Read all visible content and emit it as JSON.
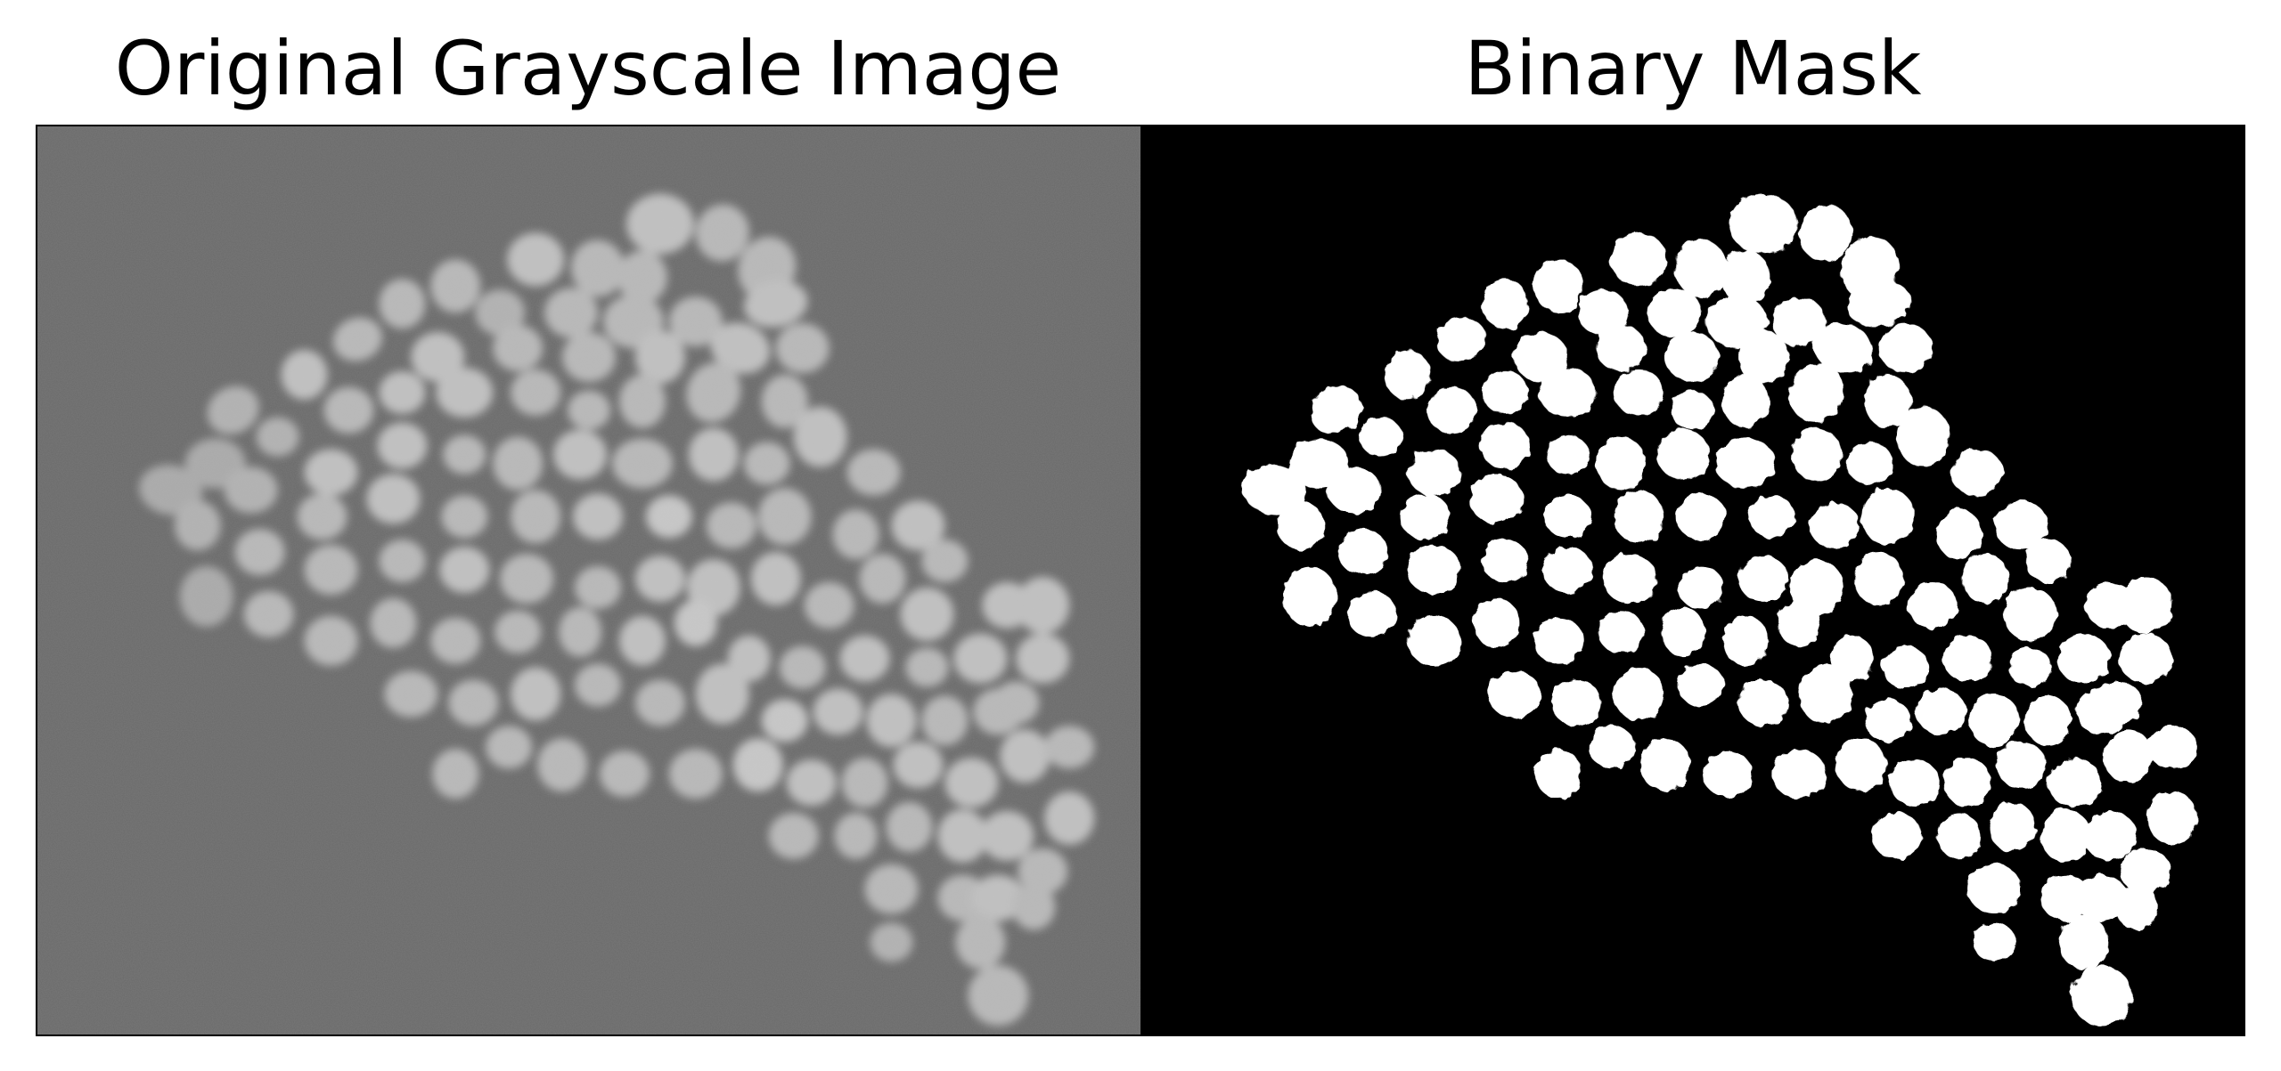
{
  "figure": {
    "panels": [
      {
        "title": "Original Grayscale Image",
        "background": "#6b6b6b",
        "content": "grayscale fluorescence image of clustered nuclei"
      },
      {
        "title": "Binary Mask",
        "background": "#000000",
        "foreground": "#ffffff",
        "content": "thresholded binary segmentation mask of the nuclei"
      }
    ]
  }
}
